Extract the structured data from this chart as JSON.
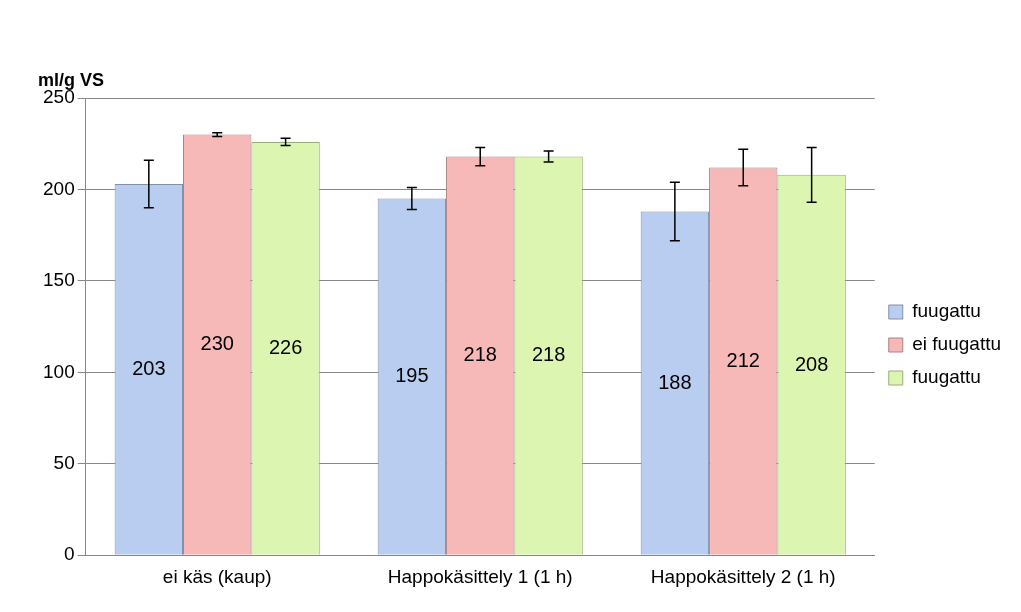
{
  "chart_data": {
    "type": "bar",
    "ylabel": "ml/g VS",
    "categories": [
      "ei käs (kaup)",
      "Happokäsittely 1 (1 h)",
      "Happokäsittely 2 (1 h)"
    ],
    "series": [
      {
        "name": "fuugattu",
        "color": "#b9cdf0",
        "values": [
          203,
          195,
          188
        ],
        "errors": [
          [
            190,
            216
          ],
          [
            189,
            201
          ],
          [
            172,
            204
          ]
        ]
      },
      {
        "name": "ei fuugattu",
        "color": "#f7b8b8",
        "values": [
          230,
          218,
          212
        ],
        "errors": [
          [
            229,
            231
          ],
          [
            213,
            223
          ],
          [
            202,
            222
          ]
        ]
      },
      {
        "name": "fuugattu",
        "color": "#dcf5b0",
        "values": [
          226,
          218,
          208
        ],
        "errors": [
          [
            224,
            228
          ],
          [
            215,
            221
          ],
          [
            193,
            223
          ]
        ]
      }
    ],
    "ylim": [
      0,
      250
    ],
    "yticks": [
      0,
      50,
      100,
      150,
      200,
      250
    ],
    "grid": "y",
    "legend": "right",
    "data_labels": true
  }
}
